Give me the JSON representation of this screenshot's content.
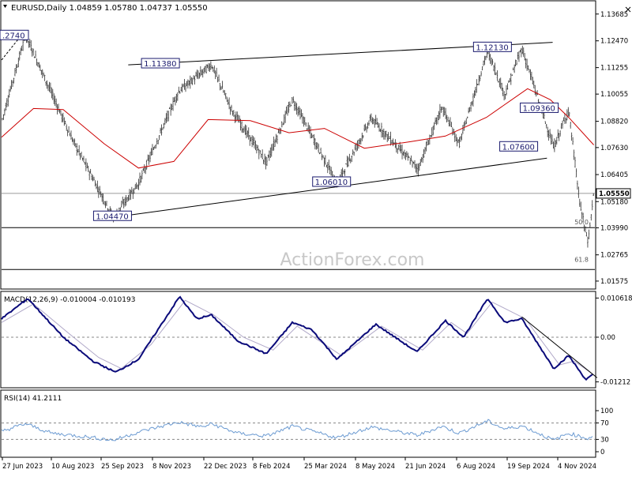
{
  "header": {
    "symbol_line": "EURUSD,Daily  1.04859 1.05780 1.04737 1.05550",
    "close_icon": "close-icon"
  },
  "watermark": "ActionForex.com",
  "colors": {
    "price_bars": "#2e2e2e",
    "moving_average": "#cc0000",
    "macd_line": "#0a0a7a",
    "signal_line": "#b0a8c8",
    "rsi_line": "#6c9bd2",
    "trend_lines": "#000000"
  },
  "chart_data": [
    {
      "type": "ohlc",
      "panel": "price",
      "title": "EURUSD,Daily",
      "ohlc_last": {
        "open": 1.04859,
        "high": 1.0578,
        "low": 1.04737,
        "close": 1.0555
      },
      "x_ticks": [
        "27 Jun 2023",
        "10 Aug 2023",
        "25 Sep 2023",
        "8 Nov 2023",
        "22 Dec 2023",
        "8 Feb 2024",
        "25 Mar 2024",
        "8 May 2024",
        "21 Jun 2024",
        "6 Aug 2024",
        "19 Sep 2024",
        "4 Nov 2024"
      ],
      "y_ticks": [
        "1.13685",
        "1.12470",
        "1.11255",
        "1.10055",
        "1.08820",
        "1.07630",
        "1.06405",
        "1.05180",
        "1.03990",
        "1.02765",
        "1.01575"
      ],
      "ylim": [
        1.0125,
        1.1425
      ],
      "current_price_label": "1.05550",
      "series": [
        {
          "name": "EURUSD",
          "swing_points": [
            {
              "x": "2023-06-27",
              "y": 1.088
            },
            {
              "x": "2023-07-18",
              "y": 1.1274
            },
            {
              "x": "2023-08-28",
              "y": 1.08
            },
            {
              "x": "2023-10-03",
              "y": 1.0447
            },
            {
              "x": "2023-10-25",
              "y": 1.06
            },
            {
              "x": "2023-11-29",
              "y": 1.1017
            },
            {
              "x": "2023-12-28",
              "y": 1.1139
            },
            {
              "x": "2024-01-15",
              "y": 1.093
            },
            {
              "x": "2024-02-14",
              "y": 1.0695
            },
            {
              "x": "2024-03-08",
              "y": 1.0981
            },
            {
              "x": "2024-04-16",
              "y": 1.0601
            },
            {
              "x": "2024-05-16",
              "y": 1.0895
            },
            {
              "x": "2024-06-26",
              "y": 1.0666
            },
            {
              "x": "2024-07-17",
              "y": 1.0948
            },
            {
              "x": "2024-08-01",
              "y": 1.0777
            },
            {
              "x": "2024-08-26",
              "y": 1.1202
            },
            {
              "x": "2024-09-10",
              "y": 1.1002
            },
            {
              "x": "2024-09-25",
              "y": 1.1214
            },
            {
              "x": "2024-10-23",
              "y": 1.0761
            },
            {
              "x": "2024-11-05",
              "y": 1.0937
            },
            {
              "x": "2024-11-15",
              "y": 1.05
            },
            {
              "x": "2024-11-22",
              "y": 1.0333
            },
            {
              "x": "2024-11-27",
              "y": 1.0555
            }
          ]
        },
        {
          "name": "MA",
          "points": [
            {
              "x": "2023-06-27",
              "y": 1.081
            },
            {
              "x": "2023-07-25",
              "y": 1.094
            },
            {
              "x": "2023-08-20",
              "y": 1.0935
            },
            {
              "x": "2023-09-25",
              "y": 1.078
            },
            {
              "x": "2023-10-25",
              "y": 1.067
            },
            {
              "x": "2023-11-25",
              "y": 1.07
            },
            {
              "x": "2023-12-25",
              "y": 1.089
            },
            {
              "x": "2024-01-31",
              "y": 1.0885
            },
            {
              "x": "2024-03-05",
              "y": 1.083
            },
            {
              "x": "2024-04-05",
              "y": 1.085
            },
            {
              "x": "2024-05-10",
              "y": 1.076
            },
            {
              "x": "2024-06-20",
              "y": 1.079
            },
            {
              "x": "2024-07-20",
              "y": 1.0815
            },
            {
              "x": "2024-08-25",
              "y": 1.09
            },
            {
              "x": "2024-09-30",
              "y": 1.103
            },
            {
              "x": "2024-10-20",
              "y": 1.098
            },
            {
              "x": "2024-11-05",
              "y": 1.09
            },
            {
              "x": "2024-11-27",
              "y": 1.0775
            }
          ]
        }
      ],
      "trend_lines": [
        {
          "from": {
            "x": "2023-10-03",
            "y": 1.0447
          },
          "to": {
            "x": "2024-10-17",
            "y": 1.0715
          }
        },
        {
          "from": {
            "x": "2023-10-16",
            "y": 1.1138
          },
          "to": {
            "x": "2024-10-22",
            "y": 1.124
          }
        }
      ],
      "horizontal_lines": [
        {
          "y": 1.04,
          "label": "50.0"
        },
        {
          "y": 1.021,
          "label": "61.8"
        },
        {
          "y": 1.0555
        }
      ],
      "annotations": [
        {
          "text": ".2740",
          "x": "2023-06-27",
          "y": 1.127
        },
        {
          "text": "1.04470",
          "x": "2023-09-17",
          "y": 1.045
        },
        {
          "text": "1.11380",
          "x": "2023-10-29",
          "y": 1.1142
        },
        {
          "text": "1.06010",
          "x": "2024-03-27",
          "y": 1.0605
        },
        {
          "text": "1.12130",
          "x": "2024-08-15",
          "y": 1.1216
        },
        {
          "text": "1.09360",
          "x": "2024-09-25",
          "y": 1.094
        },
        {
          "text": "1.07600",
          "x": "2024-09-07",
          "y": 1.0765
        }
      ]
    },
    {
      "type": "line",
      "panel": "macd",
      "title": "MACD(12,26,9) -0.010004 -0.010193",
      "y_ticks": [
        "0.010618",
        "0.00",
        "-0.01212"
      ],
      "ylim": [
        -0.0135,
        0.0122
      ],
      "zero_line": 0,
      "series": [
        {
          "name": "MACD",
          "points": [
            {
              "x": "2023-06-27",
              "y": 0.005
            },
            {
              "x": "2023-07-20",
              "y": 0.0105
            },
            {
              "x": "2023-08-20",
              "y": 0.0
            },
            {
              "x": "2023-09-15",
              "y": -0.0065
            },
            {
              "x": "2023-10-05",
              "y": -0.0095
            },
            {
              "x": "2023-10-25",
              "y": -0.006
            },
            {
              "x": "2023-11-30",
              "y": 0.011
            },
            {
              "x": "2023-12-15",
              "y": 0.005
            },
            {
              "x": "2023-12-28",
              "y": 0.006
            },
            {
              "x": "2024-01-20",
              "y": -0.001
            },
            {
              "x": "2024-02-14",
              "y": -0.0045
            },
            {
              "x": "2024-03-08",
              "y": 0.004
            },
            {
              "x": "2024-03-25",
              "y": 0.002
            },
            {
              "x": "2024-04-16",
              "y": -0.006
            },
            {
              "x": "2024-05-20",
              "y": 0.0035
            },
            {
              "x": "2024-06-25",
              "y": -0.004
            },
            {
              "x": "2024-07-20",
              "y": 0.0045
            },
            {
              "x": "2024-08-05",
              "y": 0.0
            },
            {
              "x": "2024-08-26",
              "y": 0.0105
            },
            {
              "x": "2024-09-10",
              "y": 0.004
            },
            {
              "x": "2024-09-25",
              "y": 0.005
            },
            {
              "x": "2024-10-23",
              "y": -0.0085
            },
            {
              "x": "2024-11-05",
              "y": -0.005
            },
            {
              "x": "2024-11-20",
              "y": -0.0115
            },
            {
              "x": "2024-11-27",
              "y": -0.01
            }
          ]
        },
        {
          "name": "Signal",
          "points": [
            {
              "x": "2023-06-27",
              "y": 0.004
            },
            {
              "x": "2023-07-25",
              "y": 0.009
            },
            {
              "x": "2023-08-25",
              "y": 0.001
            },
            {
              "x": "2023-09-20",
              "y": -0.0055
            },
            {
              "x": "2023-10-10",
              "y": -0.0085
            },
            {
              "x": "2023-11-05",
              "y": -0.002
            },
            {
              "x": "2023-12-05",
              "y": 0.01
            },
            {
              "x": "2023-12-30",
              "y": 0.006
            },
            {
              "x": "2024-01-25",
              "y": 0.0
            },
            {
              "x": "2024-02-20",
              "y": -0.0035
            },
            {
              "x": "2024-03-12",
              "y": 0.003
            },
            {
              "x": "2024-04-20",
              "y": -0.005
            },
            {
              "x": "2024-05-25",
              "y": 0.003
            },
            {
              "x": "2024-06-30",
              "y": -0.0035
            },
            {
              "x": "2024-07-25",
              "y": 0.004
            },
            {
              "x": "2024-08-08",
              "y": 0.001
            },
            {
              "x": "2024-08-30",
              "y": 0.0095
            },
            {
              "x": "2024-09-28",
              "y": 0.005
            },
            {
              "x": "2024-10-28",
              "y": -0.0075
            },
            {
              "x": "2024-11-10",
              "y": -0.0065
            },
            {
              "x": "2024-11-27",
              "y": -0.0102
            }
          ]
        }
      ],
      "trend_lines": [
        {
          "from": {
            "x": "2024-09-25",
            "y": 0.0055
          },
          "to": {
            "x": "2024-11-30",
            "y": -0.011
          }
        }
      ]
    },
    {
      "type": "line",
      "panel": "rsi",
      "title": "RSI(14) 41.2111",
      "y_ticks": [
        "100",
        "70",
        "30",
        "0"
      ],
      "ylim": [
        0,
        100
      ],
      "levels": [
        70,
        30
      ],
      "series": [
        {
          "name": "RSI",
          "points": [
            {
              "x": "2023-06-27",
              "y": 50
            },
            {
              "x": "2023-07-18",
              "y": 68
            },
            {
              "x": "2023-08-10",
              "y": 45
            },
            {
              "x": "2023-09-05",
              "y": 38
            },
            {
              "x": "2023-10-03",
              "y": 28
            },
            {
              "x": "2023-10-25",
              "y": 48
            },
            {
              "x": "2023-11-29",
              "y": 72
            },
            {
              "x": "2023-12-20",
              "y": 60
            },
            {
              "x": "2023-12-28",
              "y": 68
            },
            {
              "x": "2024-01-20",
              "y": 45
            },
            {
              "x": "2024-02-14",
              "y": 38
            },
            {
              "x": "2024-03-08",
              "y": 62
            },
            {
              "x": "2024-04-16",
              "y": 34
            },
            {
              "x": "2024-05-16",
              "y": 60
            },
            {
              "x": "2024-06-26",
              "y": 40
            },
            {
              "x": "2024-07-17",
              "y": 62
            },
            {
              "x": "2024-08-01",
              "y": 45
            },
            {
              "x": "2024-08-26",
              "y": 75
            },
            {
              "x": "2024-09-10",
              "y": 55
            },
            {
              "x": "2024-09-25",
              "y": 63
            },
            {
              "x": "2024-10-23",
              "y": 28
            },
            {
              "x": "2024-11-05",
              "y": 45
            },
            {
              "x": "2024-11-22",
              "y": 32
            },
            {
              "x": "2024-11-27",
              "y": 41
            }
          ]
        }
      ]
    }
  ]
}
